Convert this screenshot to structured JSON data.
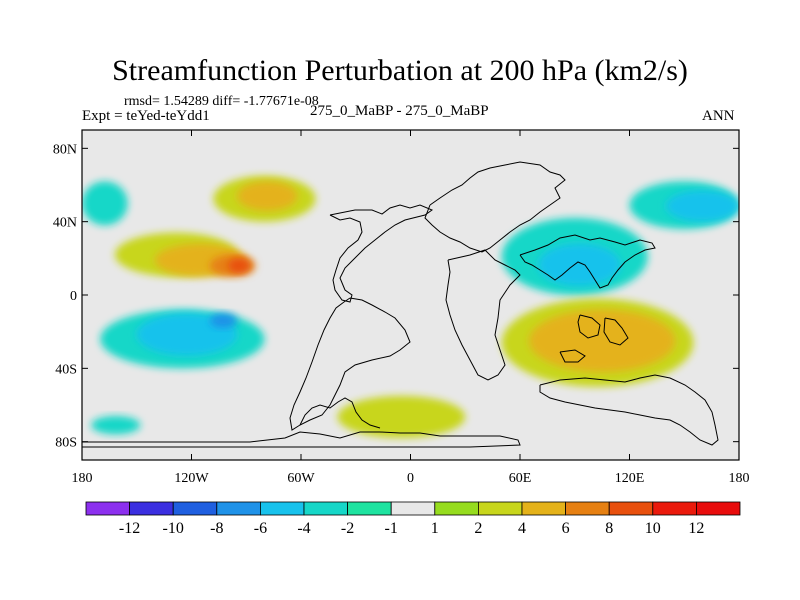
{
  "chart_data": {
    "type": "contour-map",
    "title": "Streamfunction Perturbation at 200 hPa (km2/s)",
    "stats_label": "rmsd= 1.54289 diff= -1.77671e-08",
    "experiment_label": "Expt = teYed-teYdd1",
    "case_label": "275_0_MaBP - 275_0_MaBP",
    "season_label": "ANN",
    "x_ticks": [
      "180",
      "120W",
      "60W",
      "0",
      "60E",
      "120E",
      "180"
    ],
    "x_tick_values": [
      -180,
      -120,
      -60,
      0,
      60,
      120,
      180
    ],
    "y_ticks": [
      "80N",
      "40N",
      "0",
      "40S",
      "80S"
    ],
    "y_tick_values": [
      80,
      40,
      0,
      -40,
      -80
    ],
    "xlim": [
      -180,
      180
    ],
    "ylim": [
      -90,
      90
    ],
    "colorbar_labels": [
      "-12",
      "-10",
      "-8",
      "-6",
      "-4",
      "-2",
      "-1",
      "1",
      "2",
      "4",
      "6",
      "8",
      "10",
      "12"
    ],
    "colorbar_levels": [
      -12,
      -10,
      -8,
      -6,
      -4,
      -2,
      -1,
      1,
      2,
      4,
      6,
      8,
      10,
      12
    ],
    "colors": [
      "#8c30ee",
      "#3b2fe0",
      "#1f5fe0",
      "#1f92e8",
      "#18c2ec",
      "#16d7c8",
      "#1ee3a0",
      "#e8e8e8",
      "#96dc1e",
      "#c8d61c",
      "#e4b21a",
      "#e68012",
      "#e8500e",
      "#ea1a0c",
      "#e80c0c"
    ],
    "regions": [
      {
        "name": "east-pacific-south",
        "lon": [
          -162,
          -95
        ],
        "lat": [
          10,
          34
        ],
        "level": 2
      },
      {
        "name": "east-pacific-south-core",
        "lon": [
          -140,
          -90
        ],
        "lat": [
          10,
          28
        ],
        "level": 4
      },
      {
        "name": "east-pacific-south-max",
        "lon": [
          -110,
          -85
        ],
        "lat": [
          10,
          22
        ],
        "level": 6
      },
      {
        "name": "east-pacific-south-peak",
        "lon": [
          -100,
          -88
        ],
        "lat": [
          12,
          20
        ],
        "level": 8
      },
      {
        "name": "east-pacific-north",
        "lon": [
          -108,
          -52
        ],
        "lat": [
          40,
          65
        ],
        "level": 2
      },
      {
        "name": "east-pacific-north-core",
        "lon": [
          -95,
          -62
        ],
        "lat": [
          46,
          62
        ],
        "level": 4
      },
      {
        "name": "southeast-pacific-low",
        "lon": [
          -170,
          -80
        ],
        "lat": [
          -40,
          -8
        ],
        "level": -2
      },
      {
        "name": "southeast-pacific-low-core",
        "lon": [
          -150,
          -95
        ],
        "lat": [
          -33,
          -10
        ],
        "level": -4
      },
      {
        "name": "southeast-pacific-low-max",
        "lon": [
          -110,
          -95
        ],
        "lat": [
          -18,
          -10
        ],
        "level": -6
      },
      {
        "name": "west-pacific-north-low",
        "lon": [
          120,
          180
        ],
        "lat": [
          36,
          62
        ],
        "level": -2
      },
      {
        "name": "west-pacific-north-low-core",
        "lon": [
          140,
          180
        ],
        "lat": [
          40,
          57
        ],
        "level": -4
      },
      {
        "name": "dateline-north-low",
        "lon": [
          -180,
          -155
        ],
        "lat": [
          38,
          62
        ],
        "level": -2
      },
      {
        "name": "indian-ocean-north-low",
        "lon": [
          50,
          130
        ],
        "lat": [
          0,
          42
        ],
        "level": -2
      },
      {
        "name": "indian-ocean-north-low-core",
        "lon": [
          70,
          115
        ],
        "lat": [
          5,
          28
        ],
        "level": -4
      },
      {
        "name": "indian-ocean-south-high",
        "lon": [
          50,
          155
        ],
        "lat": [
          -50,
          -2
        ],
        "level": 2
      },
      {
        "name": "indian-ocean-south-high-core",
        "lon": [
          65,
          145
        ],
        "lat": [
          -42,
          -8
        ],
        "level": 4
      },
      {
        "name": "south-atlantic-high",
        "lon": [
          -40,
          30
        ],
        "lat": [
          -78,
          -55
        ],
        "level": 2
      },
      {
        "name": "pacific-small-low",
        "lon": [
          -175,
          -148
        ],
        "lat": [
          -76,
          -66
        ],
        "level": -2
      }
    ]
  }
}
